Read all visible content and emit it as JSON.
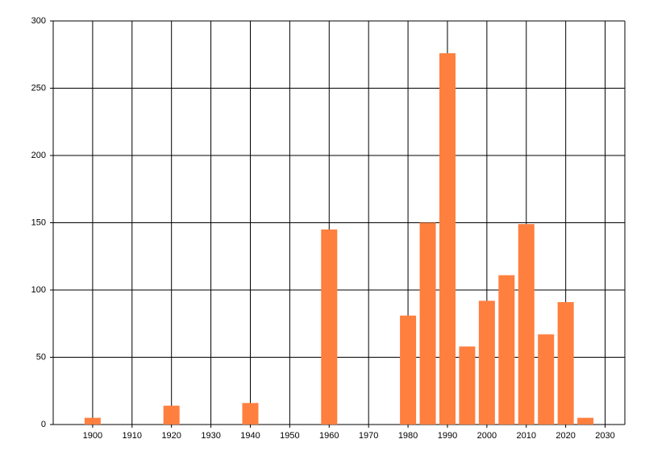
{
  "chart_data": {
    "type": "bar",
    "x": [
      1900,
      1920,
      1940,
      1960,
      1980,
      1985,
      1990,
      1995,
      2000,
      2005,
      2010,
      2015,
      2020,
      2025
    ],
    "values": [
      5,
      14,
      16,
      145,
      81,
      150,
      276,
      58,
      92,
      111,
      149,
      67,
      91,
      5
    ],
    "color": "#ff7f3f",
    "xlim": [
      1890,
      2035
    ],
    "xticks": [
      1900,
      1910,
      1920,
      1930,
      1940,
      1950,
      1960,
      1970,
      1980,
      1990,
      2000,
      2010,
      2020,
      2030
    ],
    "ylim": [
      0,
      300
    ],
    "yticks": [
      0,
      50,
      100,
      150,
      200,
      250,
      300
    ],
    "grid": true
  }
}
